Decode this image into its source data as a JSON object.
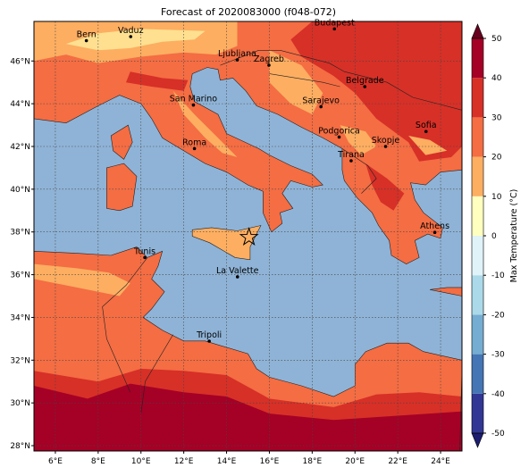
{
  "title": "Forecast of 2020083000 (f048-072)",
  "map": {
    "xlim": [
      5,
      25
    ],
    "ylim": [
      27.75,
      47.85
    ],
    "xticks": [
      {
        "value": 6,
        "label": "6°E"
      },
      {
        "value": 8,
        "label": "8°E"
      },
      {
        "value": 10,
        "label": "10°E"
      },
      {
        "value": 12,
        "label": "12°E"
      },
      {
        "value": 14,
        "label": "14°E"
      },
      {
        "value": 16,
        "label": "16°E"
      },
      {
        "value": 18,
        "label": "18°E"
      },
      {
        "value": 20,
        "label": "20°E"
      },
      {
        "value": 22,
        "label": "22°E"
      },
      {
        "value": 24,
        "label": "24°E"
      }
    ],
    "yticks": [
      {
        "value": 28,
        "label": "28°N"
      },
      {
        "value": 30,
        "label": "30°N"
      },
      {
        "value": 32,
        "label": "32°N"
      },
      {
        "value": 34,
        "label": "34°N"
      },
      {
        "value": 36,
        "label": "36°N"
      },
      {
        "value": 38,
        "label": "38°N"
      },
      {
        "value": 40,
        "label": "40°N"
      },
      {
        "value": 42,
        "label": "42°N"
      },
      {
        "value": 44,
        "label": "44°N"
      },
      {
        "value": 46,
        "label": "46°N"
      }
    ],
    "grid": true,
    "cities": [
      "Bern",
      "Vaduz",
      "Budapest",
      "Ljubljana",
      "Zagreb",
      "Belgrade",
      "San Marino",
      "Sarajevo",
      "Sofia",
      "Podgorica",
      "Skopje",
      "Roma",
      "Tirana",
      "Athens",
      "Tunis",
      "La Valette",
      "Tripoli"
    ]
  },
  "colorbar": {
    "label": "Max Temperature (°C)",
    "lim": [
      -50,
      50
    ],
    "ticks": [
      -50,
      -40,
      -30,
      -20,
      -10,
      0,
      10,
      20,
      30,
      40,
      50
    ],
    "colors": [
      "#313695",
      "#4575b4",
      "#74add1",
      "#abd9e9",
      "#e0f3f8",
      "#ffffbf",
      "#fdae61",
      "#f46d43",
      "#d73027",
      "#a50026"
    ],
    "under_color": "#1c1c70",
    "over_color": "#67001f"
  }
}
